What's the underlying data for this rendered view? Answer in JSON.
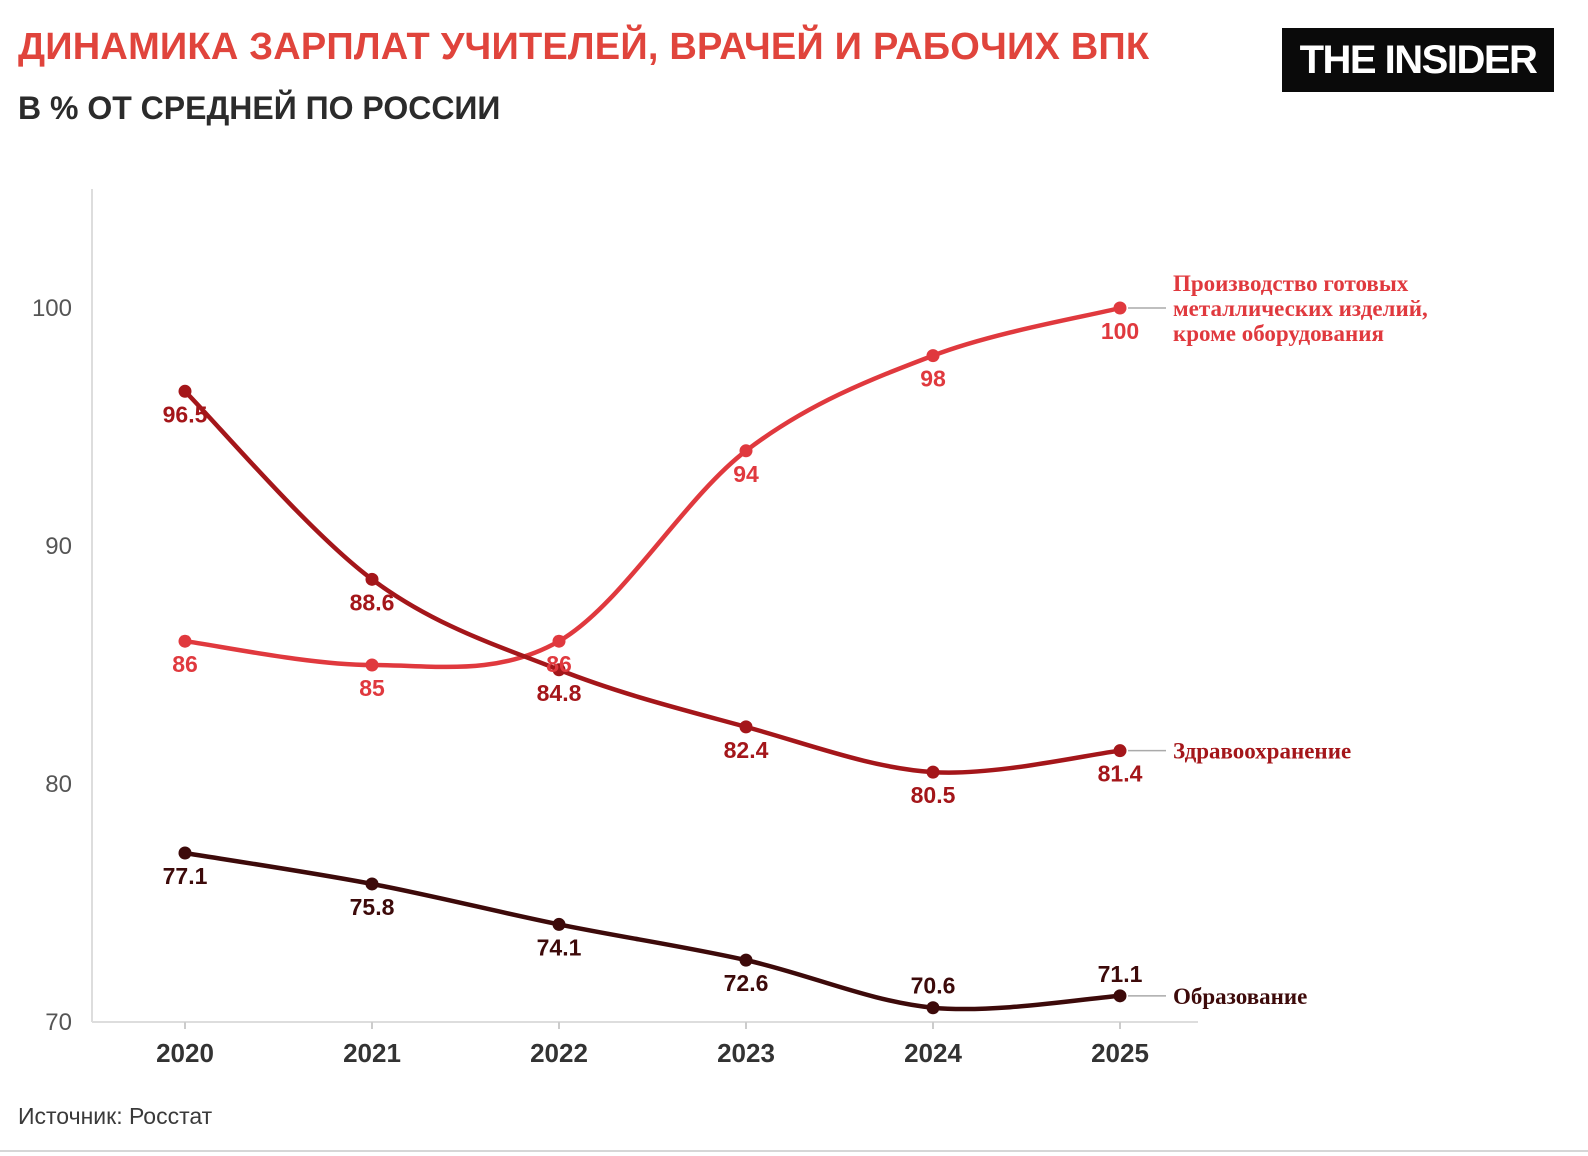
{
  "header": {
    "title": "ДИНАМИКА ЗАРПЛАТ УЧИТЕЛЕЙ, ВРАЧЕЙ И РАБОЧИХ ВПК",
    "subtitle": "В % ОТ СРЕДНЕЙ ПО РОССИИ",
    "logo_text": "THE INSIDER"
  },
  "footer": {
    "source": "Источник: Росстат"
  },
  "chart_data": {
    "type": "line",
    "title": "ДИНАМИКА ЗАРПЛАТ УЧИТЕЛЕЙ, ВРАЧЕЙ И РАБОЧИХ ВПК",
    "subtitle": "В % ОТ СРЕДНЕЙ ПО РОССИИ",
    "xlabel": "",
    "ylabel": "",
    "categories": [
      "2020",
      "2021",
      "2022",
      "2023",
      "2024",
      "2025"
    ],
    "ylim": [
      70,
      105
    ],
    "yticks": [
      70,
      80,
      90,
      100
    ],
    "grid": false,
    "series": [
      {
        "name": "Производство готовых металлических изделий, кроме оборудования",
        "name_lines": [
          "Производство готовых",
          "металлических изделий,",
          "кроме оборудования"
        ],
        "color": "#e0393e",
        "values": [
          86,
          85,
          86,
          94,
          98,
          100
        ],
        "labels": [
          "86",
          "85",
          "86",
          "94",
          "98",
          "100"
        ],
        "label_pos": [
          "below",
          "below",
          "below",
          "below",
          "below",
          "below"
        ]
      },
      {
        "name": "Здравоохранение",
        "name_lines": [
          "Здравоохранение"
        ],
        "color": "#a4161a",
        "values": [
          96.5,
          88.6,
          84.8,
          82.4,
          80.5,
          81.4
        ],
        "labels": [
          "96.5",
          "88.6",
          "84.8",
          "82.4",
          "80.5",
          "81.4"
        ],
        "label_pos": [
          "below",
          "below",
          "below",
          "below",
          "below",
          "below"
        ]
      },
      {
        "name": "Образование",
        "name_lines": [
          "Образование"
        ],
        "color": "#3d0a0a",
        "values": [
          77.1,
          75.8,
          74.1,
          72.6,
          70.6,
          71.1
        ],
        "labels": [
          "77.1",
          "75.8",
          "74.1",
          "72.6",
          "70.6",
          "71.1"
        ],
        "label_pos": [
          "below",
          "below",
          "below",
          "below",
          "above",
          "above"
        ]
      }
    ]
  }
}
